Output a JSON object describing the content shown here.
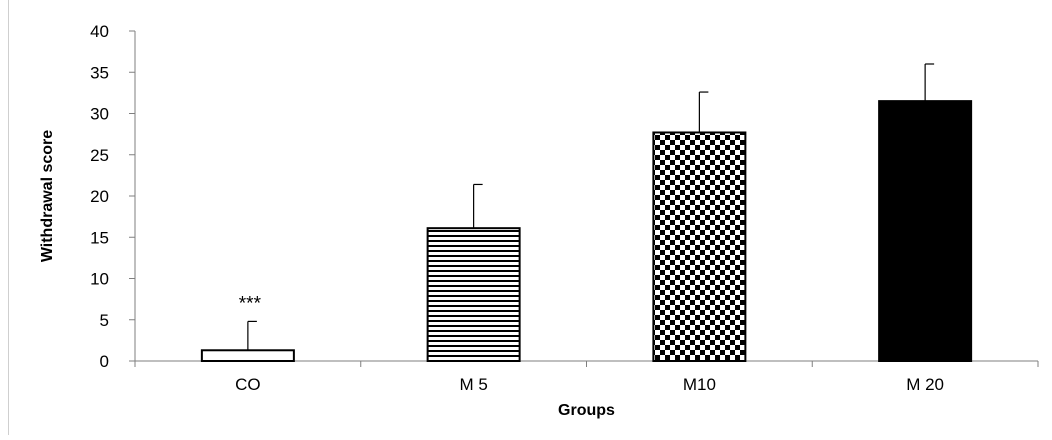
{
  "chart_data": {
    "type": "bar",
    "title": "",
    "xlabel": "Groups",
    "ylabel": "Withdrawal score",
    "ylim": [
      0,
      40
    ],
    "yticks": [
      0,
      5,
      10,
      15,
      20,
      25,
      30,
      35,
      40
    ],
    "categories": [
      "CO",
      "M 5",
      "M10",
      "M 20"
    ],
    "values": [
      1.3,
      16.1,
      27.7,
      31.5
    ],
    "errors": [
      3.5,
      5.3,
      4.9,
      4.5
    ],
    "annotations": [
      {
        "category": "CO",
        "text": "***"
      }
    ],
    "patterns": [
      "open",
      "horizontal-stripes",
      "checkerboard",
      "solid"
    ],
    "grid": false,
    "legend": "none",
    "colors": {
      "bar_fill": "#000000",
      "bar_stroke": "#000000",
      "axis": "#7f7f7f",
      "text": "#000000"
    }
  }
}
